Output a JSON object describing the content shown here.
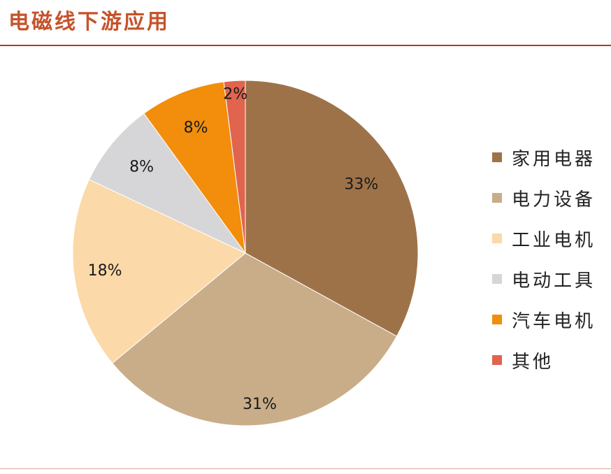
{
  "title": "电磁线下游应用",
  "chart_data": {
    "type": "pie",
    "categories": [
      "家用电器",
      "电力设备",
      "工业电机",
      "电动工具",
      "汽车电机",
      "其他"
    ],
    "values": [
      33,
      31,
      18,
      8,
      8,
      2
    ],
    "data_labels": [
      "33%",
      "31%",
      "18%",
      "8%",
      "8%",
      "2%"
    ],
    "colors": [
      "#9e7249",
      "#c9ad89",
      "#fbd9a8",
      "#d6d6d8",
      "#f28e0c",
      "#e0644e"
    ],
    "legend_position": "right",
    "start_angle": "12 o'clock",
    "direction": "clockwise"
  }
}
